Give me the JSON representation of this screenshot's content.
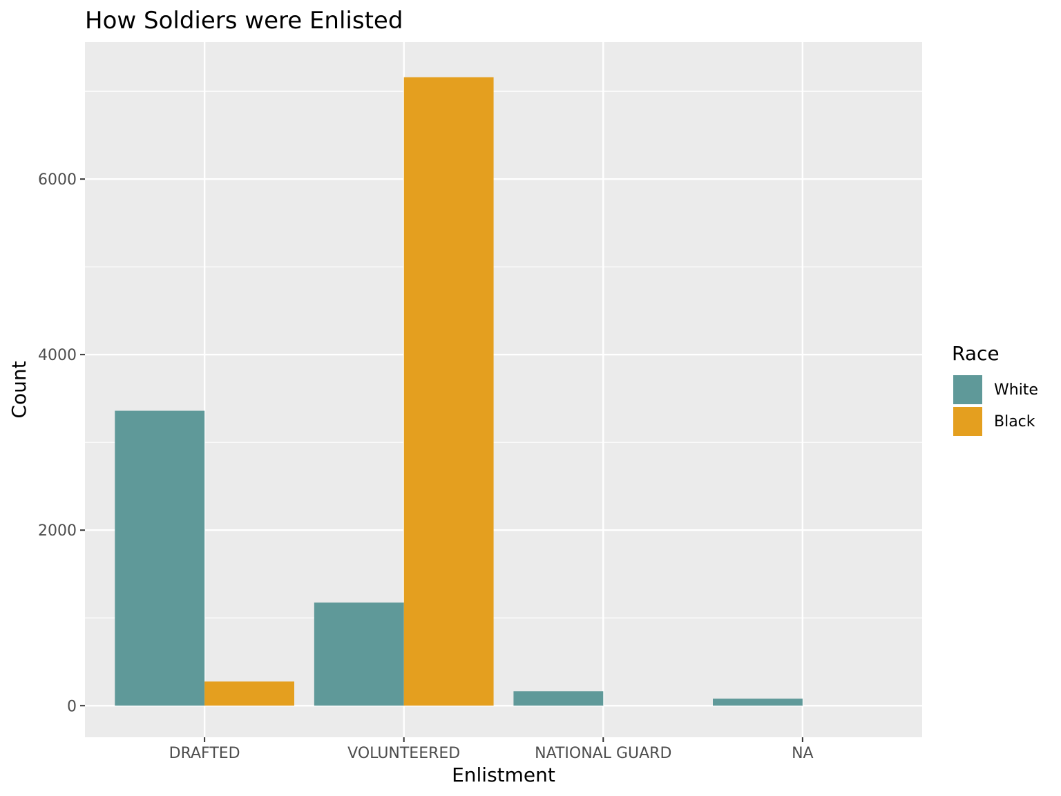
{
  "chart_data": {
    "type": "bar",
    "title": "How Soldiers were Enlisted",
    "xlabel": "Enlistment",
    "ylabel": "Count",
    "categories": [
      "DRAFTED",
      "VOLUNTEERED",
      "NATIONAL GUARD",
      "NA"
    ],
    "series": [
      {
        "name": "White",
        "color": "#5f9999",
        "values": [
          3360,
          1175,
          165,
          80
        ]
      },
      {
        "name": "Black",
        "color": "#e49f1f",
        "values": [
          275,
          7160,
          0,
          0
        ]
      }
    ],
    "yticks": [
      0,
      2000,
      4000,
      6000
    ],
    "ylim": [
      -360,
      7560
    ],
    "legend": {
      "title": "Race",
      "position": "right"
    },
    "grid": true
  }
}
